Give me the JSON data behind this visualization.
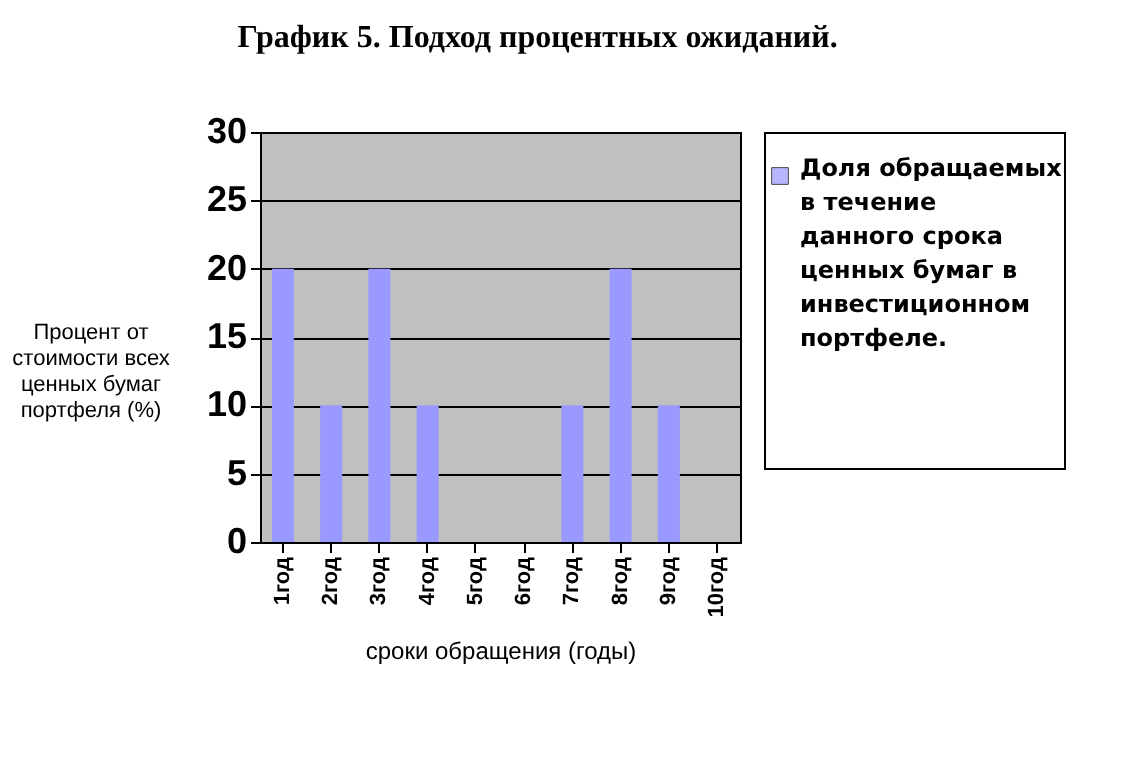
{
  "chart_data": {
    "type": "bar",
    "title": "График 5. Подход процентных ожиданий.",
    "xlabel": "сроки обращения (годы)",
    "ylabel": "Процент от стоимости всех ценных бумаг портфеля (%)",
    "categories": [
      "1год",
      "2год",
      "3год",
      "4год",
      "5год",
      "6год",
      "7год",
      "8год",
      "9год",
      "10год"
    ],
    "series": [
      {
        "name": "Доля обращаемых в течение данного срока ценных бумаг в инвестиционном портфеле.",
        "color": "#9999ff",
        "values": [
          20,
          10,
          20,
          10,
          0,
          0,
          10,
          20,
          10,
          0
        ]
      }
    ],
    "ylim": [
      0,
      30
    ],
    "yticks": [
      0,
      5,
      10,
      15,
      20,
      25,
      30
    ],
    "grid": "y",
    "legend": "right"
  }
}
